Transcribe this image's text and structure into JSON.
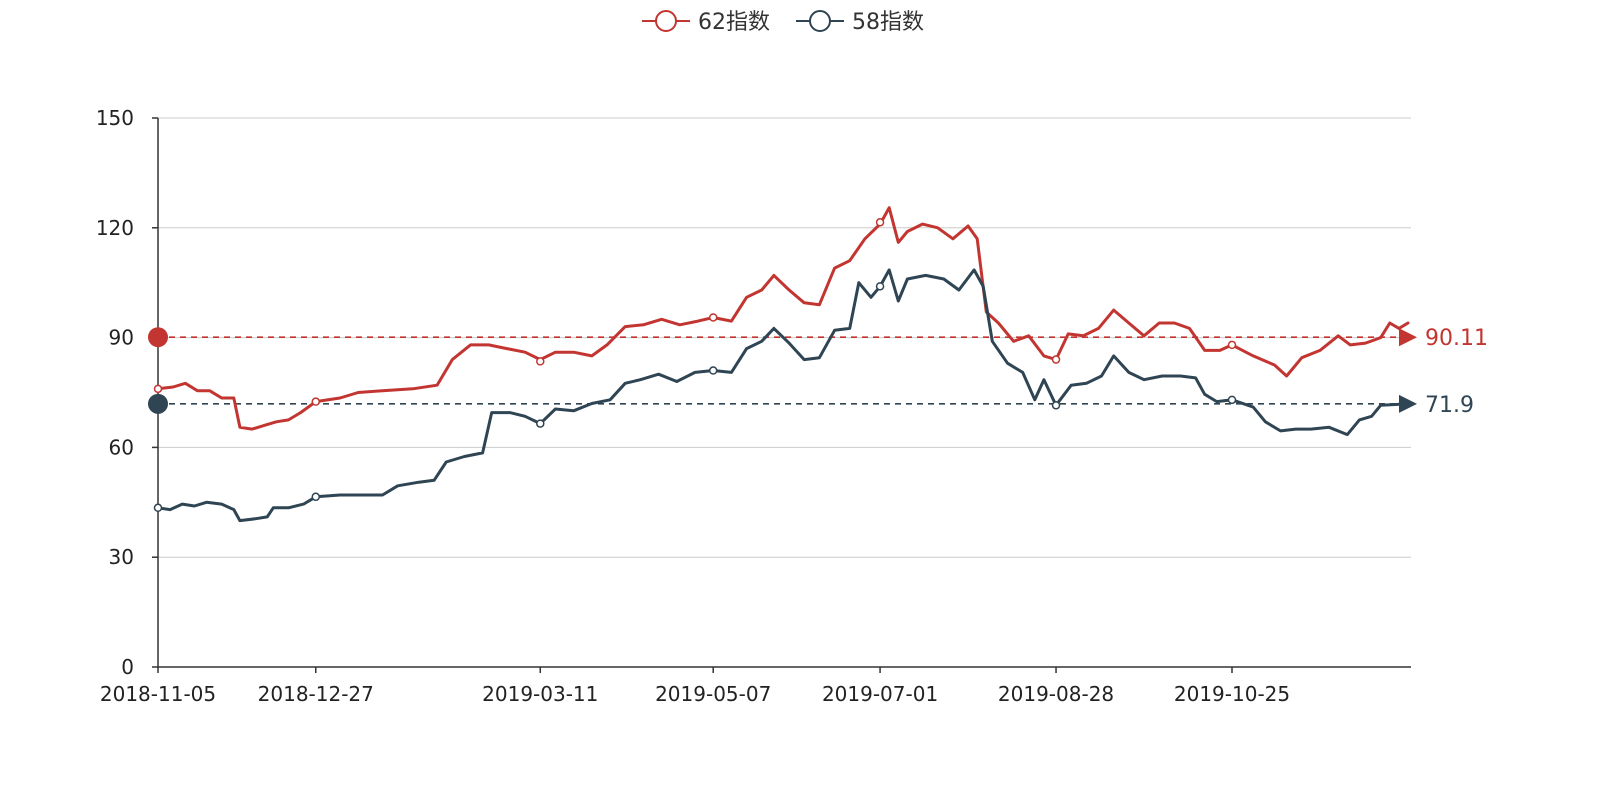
{
  "chart_data": {
    "type": "line",
    "title": "",
    "xlabel": "",
    "ylabel": "",
    "ylim": [
      0,
      150
    ],
    "y_ticks": [
      "0",
      "30",
      "60",
      "90",
      "120",
      "150"
    ],
    "x_ticks": [
      "2018-11-05",
      "2018-12-27",
      "2019-03-11",
      "2019-05-07",
      "2019-07-01",
      "2019-08-28",
      "2019-10-25"
    ],
    "grid": true,
    "legend_position": "top-center",
    "series": [
      {
        "name": "62指数",
        "color": "#c23531",
        "points": [
          [
            "2018-11-05",
            76
          ],
          [
            "2018-11-10",
            76.5
          ],
          [
            "2018-11-14",
            77.5
          ],
          [
            "2018-11-18",
            75.5
          ],
          [
            "2018-11-22",
            75.5
          ],
          [
            "2018-11-26",
            73.5
          ],
          [
            "2018-11-30",
            73.5
          ],
          [
            "2018-12-02",
            65.5
          ],
          [
            "2018-12-06",
            65
          ],
          [
            "2018-12-10",
            66
          ],
          [
            "2018-12-14",
            67
          ],
          [
            "2018-12-18",
            67.5
          ],
          [
            "2018-12-22",
            69.5
          ],
          [
            "2018-12-27",
            72.5
          ],
          [
            "2019-01-04",
            73.5
          ],
          [
            "2019-01-10",
            75
          ],
          [
            "2019-01-18",
            75.5
          ],
          [
            "2019-01-28",
            76
          ],
          [
            "2019-02-05",
            77
          ],
          [
            "2019-02-10",
            84
          ],
          [
            "2019-02-16",
            88
          ],
          [
            "2019-02-22",
            88
          ],
          [
            "2019-02-28",
            87
          ],
          [
            "2019-03-06",
            86
          ],
          [
            "2019-03-11",
            84
          ],
          [
            "2019-03-16",
            86
          ],
          [
            "2019-03-22",
            86
          ],
          [
            "2019-03-28",
            85
          ],
          [
            "2019-04-02",
            88
          ],
          [
            "2019-04-08",
            93
          ],
          [
            "2019-04-14",
            93.5
          ],
          [
            "2019-04-20",
            95
          ],
          [
            "2019-04-26",
            93.5
          ],
          [
            "2019-05-02",
            94.5
          ],
          [
            "2019-05-07",
            95.5
          ],
          [
            "2019-05-13",
            94.5
          ],
          [
            "2019-05-18",
            101
          ],
          [
            "2019-05-23",
            103
          ],
          [
            "2019-05-27",
            107
          ],
          [
            "2019-06-01",
            103
          ],
          [
            "2019-06-06",
            99.5
          ],
          [
            "2019-06-11",
            99
          ],
          [
            "2019-06-16",
            109
          ],
          [
            "2019-06-21",
            111
          ],
          [
            "2019-06-26",
            117
          ],
          [
            "2019-07-01",
            121
          ],
          [
            "2019-07-04",
            125.5
          ],
          [
            "2019-07-07",
            116
          ],
          [
            "2019-07-10",
            119
          ],
          [
            "2019-07-15",
            121
          ],
          [
            "2019-07-20",
            120
          ],
          [
            "2019-07-25",
            117
          ],
          [
            "2019-07-30",
            120.5
          ],
          [
            "2019-08-02",
            117
          ],
          [
            "2019-08-05",
            97
          ],
          [
            "2019-08-09",
            94
          ],
          [
            "2019-08-14",
            89
          ],
          [
            "2019-08-19",
            90.5
          ],
          [
            "2019-08-24",
            85
          ],
          [
            "2019-08-28",
            84
          ],
          [
            "2019-09-01",
            91
          ],
          [
            "2019-09-06",
            90.5
          ],
          [
            "2019-09-11",
            92.5
          ],
          [
            "2019-09-16",
            97.5
          ],
          [
            "2019-09-21",
            94
          ],
          [
            "2019-09-26",
            90.5
          ],
          [
            "2019-10-01",
            94
          ],
          [
            "2019-10-06",
            94
          ],
          [
            "2019-10-11",
            92.5
          ],
          [
            "2019-10-16",
            86.5
          ],
          [
            "2019-10-21",
            86.5
          ],
          [
            "2019-10-25",
            88
          ],
          [
            "2019-11-01",
            85
          ],
          [
            "2019-11-08",
            82.5
          ],
          [
            "2019-11-12",
            79.5
          ],
          [
            "2019-11-17",
            84.5
          ],
          [
            "2019-11-23",
            86.5
          ],
          [
            "2019-11-29",
            90.5
          ],
          [
            "2019-12-03",
            88
          ],
          [
            "2019-12-08",
            88.5
          ],
          [
            "2019-12-13",
            90
          ],
          [
            "2019-12-16",
            94
          ],
          [
            "2019-12-19",
            92.5
          ],
          [
            "2019-12-22",
            94
          ]
        ],
        "markers": [
          [
            "2018-11-05",
            76
          ],
          [
            "2018-12-27",
            72.5
          ],
          [
            "2019-03-11",
            83.5
          ],
          [
            "2019-05-07",
            95.5
          ],
          [
            "2019-07-01",
            121.5
          ],
          [
            "2019-08-28",
            84
          ],
          [
            "2019-10-25",
            88
          ]
        ],
        "markline": {
          "value": 90.11,
          "label": "90.11"
        }
      },
      {
        "name": "58指数",
        "color": "#2f4554",
        "points": [
          [
            "2018-11-05",
            43.5
          ],
          [
            "2018-11-09",
            43
          ],
          [
            "2018-11-13",
            44.5
          ],
          [
            "2018-11-17",
            44
          ],
          [
            "2018-11-21",
            45
          ],
          [
            "2018-11-26",
            44.5
          ],
          [
            "2018-11-30",
            43
          ],
          [
            "2018-12-02",
            40
          ],
          [
            "2018-12-07",
            40.5
          ],
          [
            "2018-12-11",
            41
          ],
          [
            "2018-12-13",
            43.5
          ],
          [
            "2018-12-18",
            43.5
          ],
          [
            "2018-12-23",
            44.5
          ],
          [
            "2018-12-27",
            46.5
          ],
          [
            "2019-01-04",
            47
          ],
          [
            "2019-01-12",
            47
          ],
          [
            "2019-01-18",
            47
          ],
          [
            "2019-01-23",
            49.5
          ],
          [
            "2019-01-30",
            50.5
          ],
          [
            "2019-02-04",
            51
          ],
          [
            "2019-02-08",
            56
          ],
          [
            "2019-02-14",
            57.5
          ],
          [
            "2019-02-20",
            58.5
          ],
          [
            "2019-02-23",
            69.5
          ],
          [
            "2019-03-01",
            69.5
          ],
          [
            "2019-03-06",
            68.5
          ],
          [
            "2019-03-11",
            66.5
          ],
          [
            "2019-03-16",
            70.5
          ],
          [
            "2019-03-22",
            70
          ],
          [
            "2019-03-28",
            72
          ],
          [
            "2019-04-03",
            73
          ],
          [
            "2019-04-08",
            77.5
          ],
          [
            "2019-04-13",
            78.5
          ],
          [
            "2019-04-19",
            80
          ],
          [
            "2019-04-25",
            78
          ],
          [
            "2019-05-01",
            80.5
          ],
          [
            "2019-05-07",
            81
          ],
          [
            "2019-05-13",
            80.5
          ],
          [
            "2019-05-18",
            87
          ],
          [
            "2019-05-23",
            89
          ],
          [
            "2019-05-27",
            92.5
          ],
          [
            "2019-06-01",
            88.5
          ],
          [
            "2019-06-06",
            84
          ],
          [
            "2019-06-11",
            84.5
          ],
          [
            "2019-06-16",
            92
          ],
          [
            "2019-06-21",
            92.5
          ],
          [
            "2019-06-24",
            105
          ],
          [
            "2019-06-28",
            101
          ],
          [
            "2019-07-01",
            104
          ],
          [
            "2019-07-04",
            108.5
          ],
          [
            "2019-07-07",
            100
          ],
          [
            "2019-07-10",
            106
          ],
          [
            "2019-07-16",
            107
          ],
          [
            "2019-07-22",
            106
          ],
          [
            "2019-07-27",
            103
          ],
          [
            "2019-08-01",
            108.5
          ],
          [
            "2019-08-04",
            104
          ],
          [
            "2019-08-07",
            89
          ],
          [
            "2019-08-12",
            83
          ],
          [
            "2019-08-17",
            80.5
          ],
          [
            "2019-08-21",
            73
          ],
          [
            "2019-08-24",
            78.5
          ],
          [
            "2019-08-28",
            71.5
          ],
          [
            "2019-09-02",
            77
          ],
          [
            "2019-09-07",
            77.5
          ],
          [
            "2019-09-12",
            79.5
          ],
          [
            "2019-09-16",
            85
          ],
          [
            "2019-09-21",
            80.5
          ],
          [
            "2019-09-26",
            78.5
          ],
          [
            "2019-10-02",
            79.5
          ],
          [
            "2019-10-08",
            79.5
          ],
          [
            "2019-10-13",
            79
          ],
          [
            "2019-10-16",
            74.5
          ],
          [
            "2019-10-20",
            72.5
          ],
          [
            "2019-10-25",
            73
          ],
          [
            "2019-11-01",
            71
          ],
          [
            "2019-11-05",
            67
          ],
          [
            "2019-11-10",
            64.5
          ],
          [
            "2019-11-15",
            65
          ],
          [
            "2019-11-20",
            65
          ],
          [
            "2019-11-26",
            65.5
          ],
          [
            "2019-12-02",
            63.5
          ],
          [
            "2019-12-06",
            67.5
          ],
          [
            "2019-12-10",
            68.5
          ],
          [
            "2019-12-13",
            71.5
          ],
          [
            "2019-12-22",
            71.9
          ]
        ],
        "markers": [
          [
            "2018-11-05",
            43.5
          ],
          [
            "2018-12-27",
            46.5
          ],
          [
            "2019-03-11",
            66.5
          ],
          [
            "2019-05-07",
            81
          ],
          [
            "2019-07-01",
            104
          ],
          [
            "2019-08-28",
            71.5
          ],
          [
            "2019-10-25",
            73
          ]
        ],
        "markline": {
          "value": 71.9,
          "label": "71.9"
        }
      }
    ]
  }
}
